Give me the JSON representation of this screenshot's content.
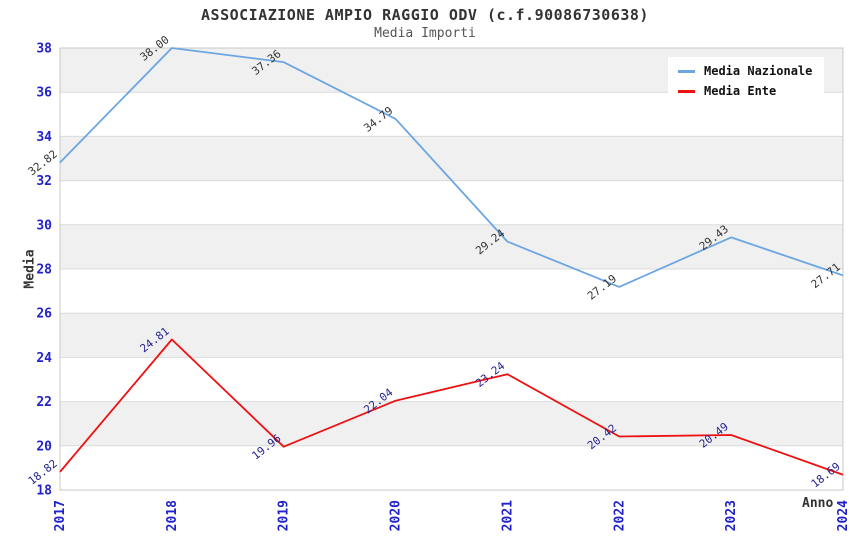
{
  "title": "ASSOCIAZIONE AMPIO RAGGIO ODV (c.f.90086730638)",
  "subtitle": "Media Importi",
  "axes": {
    "y_label": "Media",
    "x_label": "Anno",
    "y_ticks": [
      "18",
      "20",
      "22",
      "24",
      "26",
      "28",
      "30",
      "32",
      "34",
      "36",
      "38"
    ],
    "tick_color": "#2222CC"
  },
  "legend": {
    "items": [
      {
        "label": "Media Nazionale",
        "color": "#6CA6E2"
      },
      {
        "label": "Media Ente",
        "color": "#EE1111"
      }
    ]
  },
  "colors": {
    "band_gray": "#F0F0F0",
    "band_white": "#FFFFFF",
    "gridline": "#DBDBDB",
    "plot_border": "#C9C9C9",
    "national_line": "#6CA6E2",
    "entity_line": "#EE1111",
    "national_point_label": "#333333",
    "entity_point_label": "#24248E"
  },
  "chart_data": {
    "type": "line",
    "title": "ASSOCIAZIONE AMPIO RAGGIO ODV (c.f.90086730638)",
    "subtitle": "Media Importi",
    "xlabel": "Anno",
    "ylabel": "Media",
    "categories": [
      "2017",
      "2018",
      "2019",
      "2020",
      "2021",
      "2022",
      "2023",
      "2024"
    ],
    "series": [
      {
        "name": "Media Nazionale",
        "color": "#6CA6E2",
        "label_color": "#333333",
        "values": [
          32.82,
          38.0,
          37.36,
          34.79,
          29.24,
          27.19,
          29.43,
          27.71
        ],
        "labels": [
          "32.82",
          "38.00",
          "37.36",
          "34.79",
          "29.24",
          "27.19",
          "29.43",
          "27.71"
        ]
      },
      {
        "name": "Media Ente",
        "color": "#EE1111",
        "label_color": "#24248E",
        "values": [
          18.82,
          24.81,
          19.96,
          22.04,
          23.24,
          20.42,
          20.49,
          18.69
        ],
        "labels": [
          "18.82",
          "24.81",
          "19.96",
          "22.04",
          "23.24",
          "20.42",
          "20.49",
          "18.69"
        ]
      }
    ],
    "ylim": [
      18,
      38
    ],
    "y_tick_step": 2,
    "grid": "horizontal-bands-alternating",
    "legend_position": "top-right"
  }
}
